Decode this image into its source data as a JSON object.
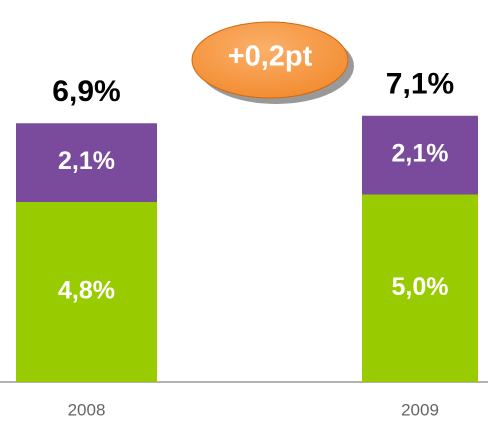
{
  "chart_data": {
    "type": "stacked-bar",
    "categories": [
      "2008",
      "2009"
    ],
    "series": [
      {
        "color": "#99cc00",
        "values": [
          4.8,
          5.0
        ],
        "value_labels": [
          "4,8%",
          "5,0%"
        ]
      },
      {
        "color": "#7a4a9c",
        "values": [
          2.1,
          2.1
        ],
        "value_labels": [
          "2,1%",
          "2,1%"
        ]
      }
    ],
    "totals": [
      6.9,
      7.1
    ],
    "total_labels": [
      "6,9%",
      "7,1%"
    ],
    "annotation": "+0,2pt",
    "annotation_color": "#f7943c"
  }
}
